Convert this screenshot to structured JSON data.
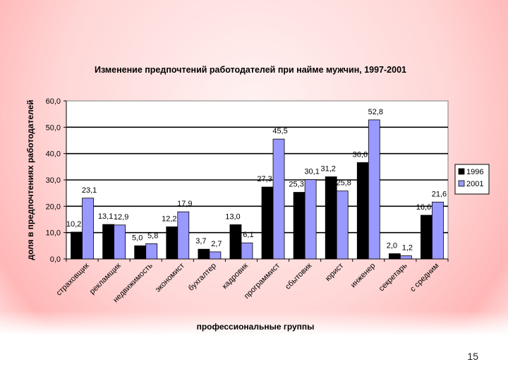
{
  "slide": {
    "page_number": "15"
  },
  "colors": {
    "series_1996": "#000000",
    "series_2001": "#9999ff",
    "plot_background": "#ffffff",
    "chart_background": "#f2c9c9"
  },
  "chart_data": {
    "type": "bar",
    "title": "Изменение предпочтений работодателей при найме мужчин, 1997-2001",
    "xlabel": "профессиональные группы",
    "ylabel": "доля в предпочтениях работодателей",
    "ylim": [
      0,
      60
    ],
    "yticks": [
      "0,0",
      "10,0",
      "20,0",
      "30,0",
      "40,0",
      "50,0",
      "60,0"
    ],
    "grid": "horizontal major lines",
    "legend_position": "right",
    "categories": [
      "страховщик",
      "рекламщик",
      "недвижимость",
      "экономист",
      "бухгалтер",
      "кадровик",
      "программист",
      "сбытовик",
      "юрист",
      "инженер",
      "секретарь",
      "с средним"
    ],
    "series": [
      {
        "name": "1996",
        "values": [
          10.2,
          13.1,
          5.0,
          12.2,
          3.7,
          13.0,
          27.3,
          25.3,
          31.2,
          36.6,
          2.0,
          16.6
        ],
        "labels": [
          "10,2",
          "13,1",
          "5,0",
          "12,2",
          "3,7",
          "13,0",
          "27,3",
          "25,3",
          "31,2",
          "36,6",
          "2,0",
          "16,6"
        ]
      },
      {
        "name": "2001",
        "values": [
          23.1,
          12.9,
          5.8,
          17.9,
          2.7,
          6.1,
          45.5,
          30.1,
          25.8,
          52.8,
          1.2,
          21.6
        ],
        "labels": [
          "23,1",
          "12,9",
          "5,8",
          "17,9",
          "2,7",
          "6,1",
          "45,5",
          "30,1",
          "25,8",
          "52,8",
          "1,2",
          "21,6"
        ]
      }
    ]
  }
}
